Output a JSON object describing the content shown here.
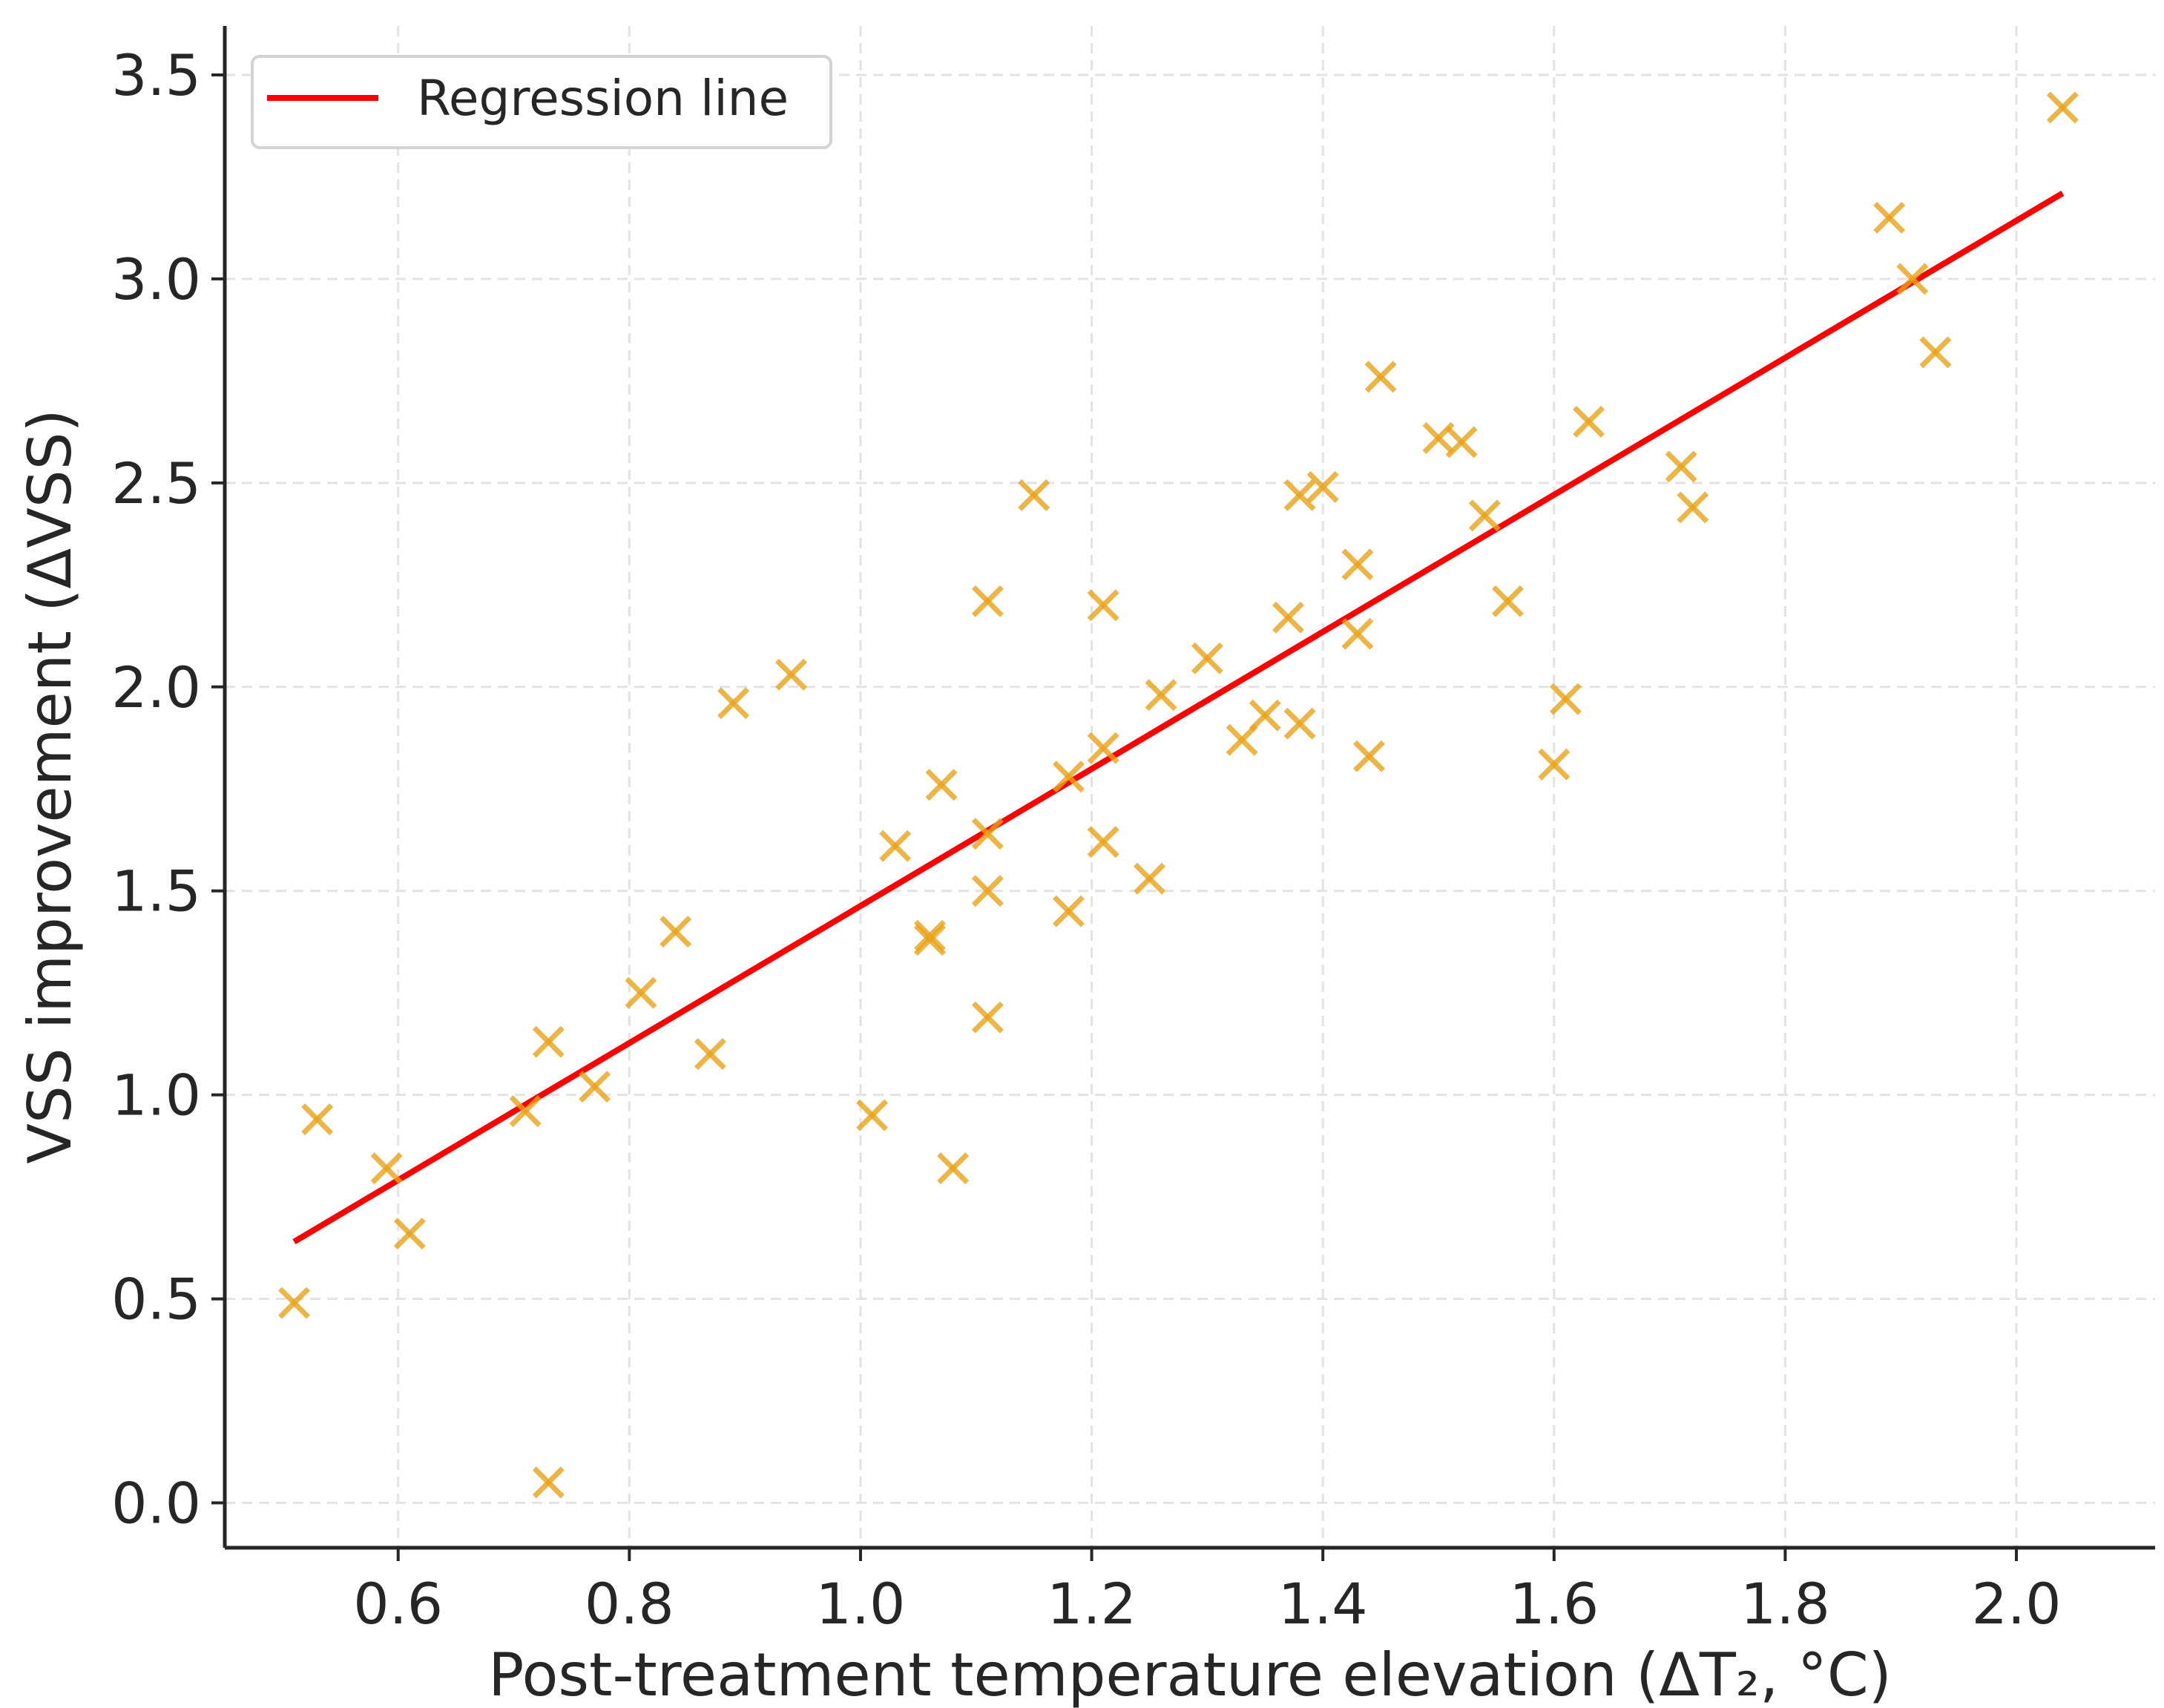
{
  "chart_data": {
    "type": "scatter",
    "xlabel": "Post-treatment temperature elevation (ΔT₂, °C)",
    "ylabel": "VSS improvement (ΔVSS)",
    "xlim": [
      0.45,
      2.12
    ],
    "ylim": [
      -0.11,
      3.62
    ],
    "xticks": [
      0.6,
      0.8,
      1.0,
      1.2,
      1.4,
      1.6,
      1.8,
      2.0
    ],
    "xtick_labels": [
      "0.6",
      "0.8",
      "1.0",
      "1.2",
      "1.4",
      "1.6",
      "1.8",
      "2.0"
    ],
    "yticks": [
      0.0,
      0.5,
      1.0,
      1.5,
      2.0,
      2.5,
      3.0,
      3.5
    ],
    "ytick_labels": [
      "0.0",
      "0.5",
      "1.0",
      "1.5",
      "2.0",
      "2.5",
      "3.0",
      "3.5"
    ],
    "grid": true,
    "legend": {
      "position": "top-left",
      "entries": [
        {
          "label": "Regression line",
          "color": "#ff0000"
        }
      ]
    },
    "regression_line": {
      "x": [
        0.51,
        2.04
      ],
      "y": [
        0.64,
        3.21
      ],
      "color": "#ff0000"
    },
    "points_color": "#e8a317",
    "points": {
      "x": [
        0.51,
        0.53,
        0.59,
        0.61,
        0.71,
        0.73,
        0.73,
        0.77,
        0.81,
        0.84,
        0.87,
        0.89,
        0.94,
        1.01,
        1.03,
        1.06,
        1.06,
        1.07,
        1.08,
        1.11,
        1.11,
        1.11,
        1.11,
        1.15,
        1.18,
        1.18,
        1.21,
        1.21,
        1.21,
        1.25,
        1.26,
        1.3,
        1.33,
        1.35,
        1.37,
        1.38,
        1.38,
        1.4,
        1.43,
        1.43,
        1.44,
        1.45,
        1.5,
        1.52,
        1.54,
        1.56,
        1.6,
        1.61,
        1.63,
        1.71,
        1.72,
        1.89,
        1.91,
        1.93,
        2.04
      ],
      "y": [
        0.49,
        0.94,
        0.82,
        0.66,
        0.96,
        1.13,
        0.05,
        1.02,
        1.25,
        1.4,
        1.1,
        1.96,
        2.03,
        0.95,
        1.61,
        1.38,
        1.39,
        1.76,
        0.82,
        2.21,
        1.64,
        1.5,
        1.19,
        2.47,
        1.78,
        1.45,
        2.2,
        1.85,
        1.62,
        1.53,
        1.98,
        2.07,
        1.87,
        1.93,
        2.17,
        2.47,
        1.91,
        2.49,
        2.3,
        2.13,
        1.83,
        2.76,
        2.61,
        2.6,
        2.42,
        2.21,
        1.81,
        1.97,
        2.65,
        2.54,
        2.44,
        3.15,
        3.0,
        2.82,
        3.42
      ]
    }
  }
}
